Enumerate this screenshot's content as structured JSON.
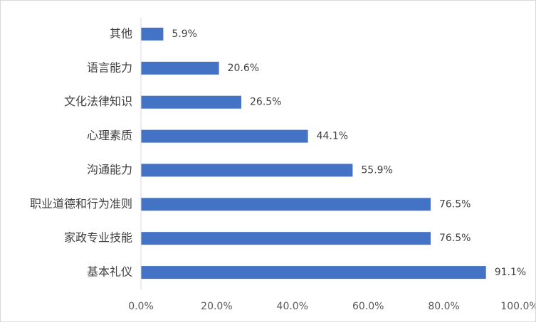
{
  "chart_data": {
    "type": "bar",
    "orientation": "horizontal",
    "categories": [
      "其他",
      "语言能力",
      "文化法律知识",
      "心理素质",
      "沟通能力",
      "职业道德和行为准则",
      "家政专业技能",
      "基本礼仪"
    ],
    "values": [
      5.9,
      20.6,
      26.5,
      44.1,
      55.9,
      76.5,
      76.5,
      91.1
    ],
    "value_labels": [
      "5.9%",
      "20.6%",
      "26.5%",
      "44.1%",
      "55.9%",
      "76.5%",
      "76.5%",
      "91.1%"
    ],
    "x_ticks": [
      "0.0%",
      "20.0%",
      "40.0%",
      "60.0%",
      "80.0%",
      "100.0%"
    ],
    "xlim": [
      0,
      100
    ],
    "grid": false,
    "legend": "none",
    "bar_color": "#4472c4",
    "title": "",
    "xlabel": "",
    "ylabel": ""
  }
}
